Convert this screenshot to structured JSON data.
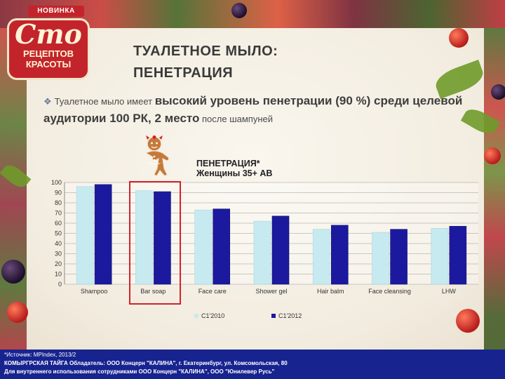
{
  "badge": {
    "top": "НОВИНКА",
    "big": "Сто",
    "line1": "РЕЦЕПТОВ",
    "line2": "КРАСОТЫ"
  },
  "title": {
    "line1": "ТУАЛЕТНОЕ МЫЛО:",
    "line2": "ПЕНЕТРАЦИЯ"
  },
  "bullet": {
    "mark": "❖",
    "part1": "Туалетное мыло имеет ",
    "part2": "высокий уровень пенетрации (90 %) среди целевой аудитории 100 РК, 2 место",
    "part3": " после шампуней"
  },
  "colors": {
    "series1": "#c6eaf0",
    "series2": "#1b1a9e",
    "highlight": "#d2232a",
    "footer": "#17238f"
  },
  "chart_data": {
    "type": "bar",
    "title": "ПЕНЕТРАЦИЯ*",
    "subtitle": "Женщины 35+ АВ",
    "categories": [
      "Shampoo",
      "Bar soap",
      "Face care",
      "Shower gel",
      "Hair balm",
      "Face cleansing",
      "LHW"
    ],
    "series": [
      {
        "name": "C1'2010",
        "values": [
          96,
          92,
          73,
          62,
          54,
          51,
          55
        ]
      },
      {
        "name": "C1'2012",
        "values": [
          98,
          91,
          74,
          67,
          58,
          54,
          57
        ]
      }
    ],
    "ylim": [
      0,
      100
    ],
    "yticks": [
      "0",
      "10",
      "20",
      "30",
      "40",
      "50",
      "60",
      "70",
      "80",
      "90",
      "100"
    ],
    "grid": true,
    "legend": "bottom"
  },
  "footer": {
    "line1": "*Источник: MPIndex, 2013/2",
    "line2": "КОМЫРГРСКАЯ ТАЙГА Обладатель: ООО Концерн \"КАЛИНА\", г. Екатеринбург, ул. Комсомольская, 80",
    "line3": "Для внутреннего использования сотрудниками ООО Концерн \"КАЛИНА\", ООО \"Юнилевер Русь\""
  }
}
